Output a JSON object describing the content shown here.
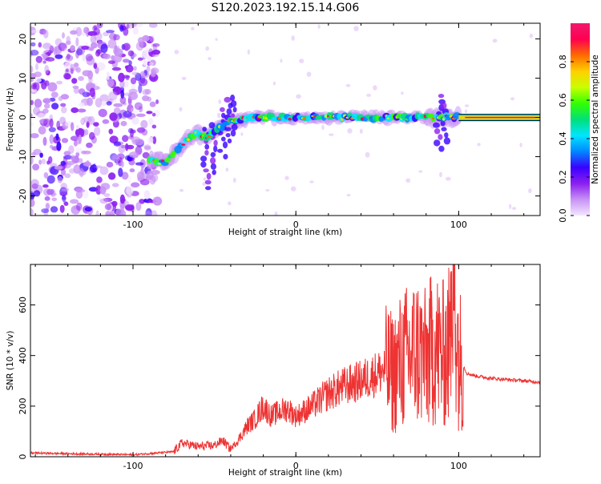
{
  "title": "S120.2023.192.15.14.G06",
  "chart_data": [
    {
      "type": "heatmap",
      "title": "S120.2023.192.15.14.G06",
      "xlabel": "Height of straight line (km)",
      "ylabel": "Frequency (Hz)",
      "xlim": [
        -163,
        150
      ],
      "ylim": [
        -25,
        24
      ],
      "x_ticks": [
        "-100",
        "0",
        "100"
      ],
      "y_ticks": [
        "-20",
        "-10",
        "0",
        "10",
        "20"
      ],
      "colorbar": {
        "label": "Normalized spectral amplitude",
        "range": [
          0,
          1
        ],
        "ticks": [
          "0.0",
          "0.2",
          "0.4",
          "0.6",
          "0.8"
        ],
        "colors": [
          "#f4e6ff",
          "#c892f5",
          "#8c1ff0",
          "#3a00ff",
          "#0088ff",
          "#00e5ff",
          "#00e07a",
          "#33ff00",
          "#c8ff00",
          "#ffd000",
          "#ff6a00",
          "#ff0050",
          "#f01a6e"
        ]
      },
      "ridge": [
        {
          "x": -90,
          "f": -11
        },
        {
          "x": -80,
          "f": -11.5
        },
        {
          "x": -70,
          "f": -7
        },
        {
          "x": -62,
          "f": -4
        },
        {
          "x": -55,
          "f": -5
        },
        {
          "x": -48,
          "f": -3
        },
        {
          "x": -40,
          "f": -1
        },
        {
          "x": -30,
          "f": 0
        },
        {
          "x": 0,
          "f": 0
        },
        {
          "x": 50,
          "f": 0
        },
        {
          "x": 100,
          "f": 0
        },
        {
          "x": 150,
          "f": 0
        }
      ]
    },
    {
      "type": "line",
      "xlabel": "Height of straight line (km)",
      "ylabel": "SNR (10 * v/v)",
      "xlim": [
        -163,
        150
      ],
      "ylim": [
        0,
        760
      ],
      "x_ticks": [
        "-100",
        "0",
        "100"
      ],
      "y_ticks": [
        "0",
        "200",
        "400",
        "600"
      ],
      "color": "#ee3333",
      "x": [
        -163,
        -140,
        -120,
        -100,
        -85,
        -75,
        -70,
        -60,
        -50,
        -45,
        -40,
        -35,
        -30,
        -25,
        -20,
        -15,
        -10,
        -5,
        0,
        10,
        20,
        30,
        40,
        50,
        55,
        60,
        65,
        70,
        75,
        80,
        85,
        90,
        95,
        97,
        100,
        105,
        110,
        120,
        130,
        140,
        150
      ],
      "values": [
        15,
        12,
        10,
        8,
        15,
        20,
        55,
        40,
        45,
        65,
        30,
        70,
        120,
        150,
        200,
        160,
        180,
        190,
        160,
        200,
        250,
        280,
        300,
        330,
        345,
        330,
        380,
        400,
        420,
        380,
        440,
        400,
        450,
        760,
        400,
        330,
        320,
        310,
        305,
        300,
        295
      ]
    }
  ]
}
